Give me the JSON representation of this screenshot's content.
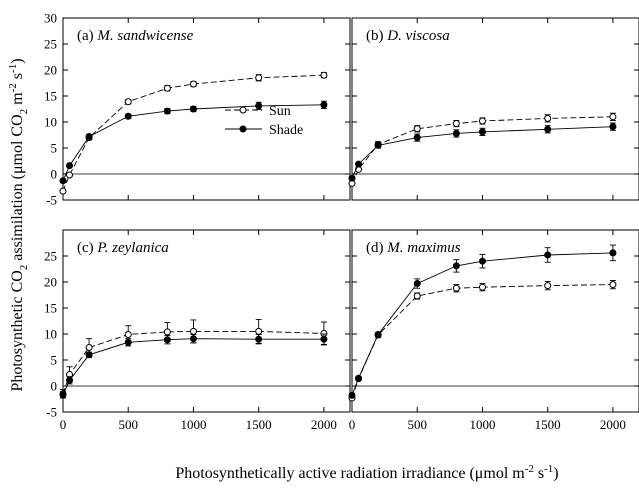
{
  "chart_data": {
    "type": "line",
    "grid": false,
    "legend_placement": "panel (a), center-right",
    "x_axis_label": "Photosynthetically active radiation irradiance (μmol m",
    "x_axis_label_sup": "-2",
    "x_axis_label_mid": " s",
    "x_axis_label_sup2": "-1",
    "x_axis_label_end": ")",
    "y_axis_label_a": "Photosynthetic CO",
    "y_axis_label_sub": "2",
    "y_axis_label_b": " assimilation (μmol CO",
    "y_axis_label_sub2": "2",
    "y_axis_label_c": " m",
    "y_axis_label_sup": "-2",
    "y_axis_label_d": " s",
    "y_axis_label_sup2": "-1",
    "y_axis_label_e": ")",
    "xlim": [
      0,
      2200
    ],
    "ylim": [
      -5,
      30
    ],
    "x_ticks": [
      0,
      500,
      1000,
      1500,
      2000
    ],
    "y_ticks": [
      -5,
      0,
      5,
      10,
      15,
      20,
      25,
      30
    ],
    "legend": [
      {
        "label": "Sun",
        "marker": "open-circle",
        "line": "dashed"
      },
      {
        "label": "Shade",
        "marker": "filled-circle",
        "line": "solid"
      }
    ],
    "x": [
      0,
      50,
      200,
      500,
      800,
      1000,
      1500,
      2000
    ],
    "panels": [
      {
        "letter": "(a)",
        "species": "M. sandwicense",
        "series": [
          {
            "name": "Sun",
            "values": [
              -3.3,
              -0.2,
              7.0,
              13.9,
              16.5,
              17.3,
              18.5,
              19.0
            ],
            "errors": [
              0.3,
              0.3,
              0.4,
              0.4,
              0.5,
              0.5,
              0.6,
              0.5
            ]
          },
          {
            "name": "Shade",
            "values": [
              -1.3,
              1.6,
              7.2,
              11.1,
              12.1,
              12.5,
              13.1,
              13.3
            ],
            "errors": [
              0.3,
              0.3,
              0.4,
              0.4,
              0.5,
              0.5,
              0.7,
              0.7
            ]
          }
        ]
      },
      {
        "letter": "(b)",
        "species": "D. viscosa",
        "series": [
          {
            "name": "Sun",
            "values": [
              -1.8,
              0.9,
              5.7,
              8.7,
              9.7,
              10.2,
              10.7,
              11.0
            ],
            "errors": [
              0.3,
              0.3,
              0.5,
              0.6,
              0.6,
              0.6,
              0.7,
              0.7
            ]
          },
          {
            "name": "Shade",
            "values": [
              -0.8,
              1.9,
              5.5,
              7.0,
              7.8,
              8.1,
              8.6,
              9.1
            ],
            "errors": [
              0.3,
              0.3,
              0.5,
              0.7,
              0.7,
              0.7,
              0.7,
              0.7
            ]
          }
        ]
      },
      {
        "letter": "(c)",
        "species": "P. zeylanica",
        "series": [
          {
            "name": "Sun",
            "values": [
              -1.5,
              2.2,
              7.4,
              9.9,
              10.4,
              10.5,
              10.5,
              10.1
            ],
            "errors": [
              0.8,
              1.5,
              1.7,
              1.7,
              1.8,
              2.2,
              2.3,
              2.2
            ]
          },
          {
            "name": "Shade",
            "values": [
              -1.7,
              1.1,
              6.0,
              8.4,
              8.9,
              9.1,
              9.0,
              9.0
            ],
            "errors": [
              0.6,
              0.7,
              0.5,
              0.7,
              0.8,
              0.8,
              0.9,
              1.0
            ]
          }
        ]
      },
      {
        "letter": "(d)",
        "species": "M. maximus",
        "series": [
          {
            "name": "Sun",
            "values": [
              -2.3,
              1.4,
              9.8,
              17.3,
              18.8,
              19.0,
              19.3,
              19.5
            ],
            "errors": [
              0.3,
              0.3,
              0.5,
              0.6,
              0.7,
              0.7,
              0.8,
              0.8
            ]
          },
          {
            "name": "Shade",
            "values": [
              -1.8,
              1.5,
              9.9,
              19.7,
              23.1,
              24.0,
              25.2,
              25.6
            ],
            "errors": [
              0.3,
              0.3,
              0.4,
              0.9,
              1.2,
              1.3,
              1.4,
              1.5
            ]
          }
        ]
      }
    ]
  }
}
